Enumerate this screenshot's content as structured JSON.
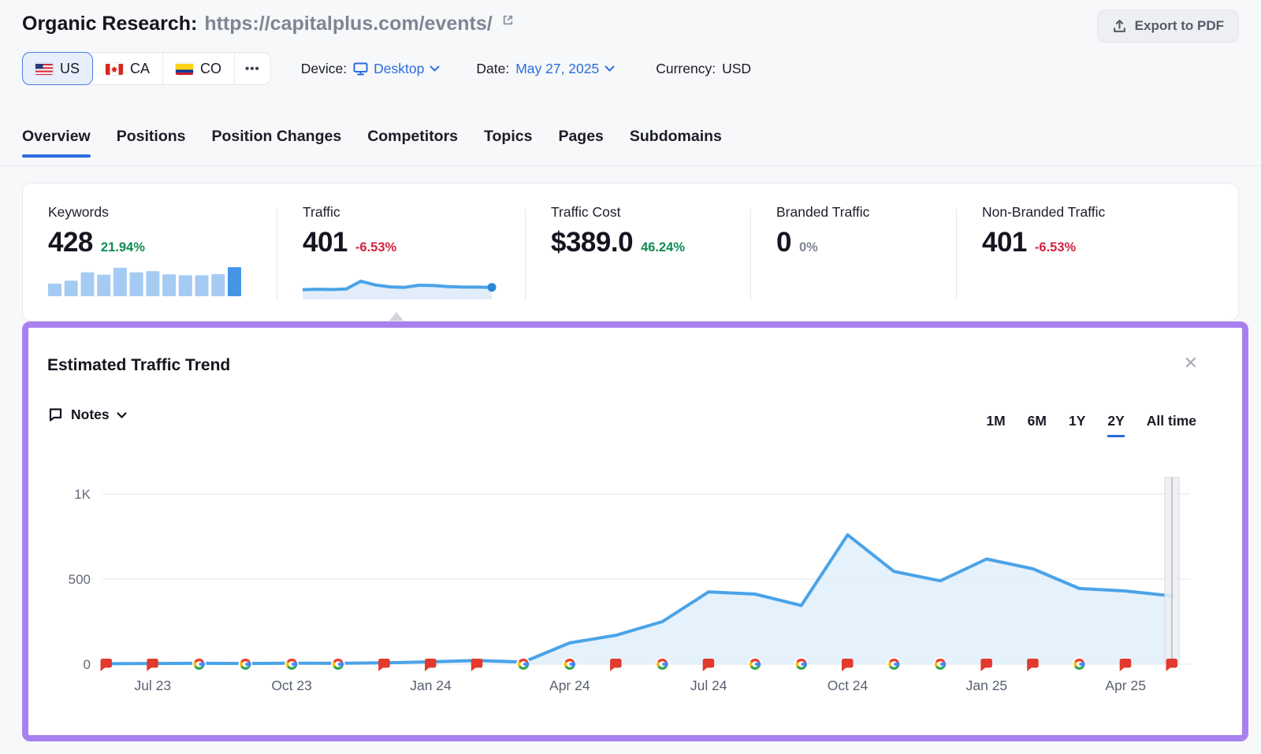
{
  "header": {
    "title": "Organic Research:",
    "url": "https://capitalplus.com/events/",
    "export_label": "Export to PDF"
  },
  "filters": {
    "countries": [
      {
        "code": "US",
        "selected": true
      },
      {
        "code": "CA",
        "selected": false
      },
      {
        "code": "CO",
        "selected": false
      }
    ],
    "more_label": "•••",
    "device_label": "Device:",
    "device_value": "Desktop",
    "date_label": "Date:",
    "date_value": "May 27, 2025",
    "currency_label": "Currency:",
    "currency_value": "USD"
  },
  "tabs": [
    {
      "label": "Overview",
      "active": true
    },
    {
      "label": "Positions",
      "active": false
    },
    {
      "label": "Position Changes",
      "active": false
    },
    {
      "label": "Competitors",
      "active": false
    },
    {
      "label": "Topics",
      "active": false
    },
    {
      "label": "Pages",
      "active": false
    },
    {
      "label": "Subdomains",
      "active": false
    }
  ],
  "metrics": [
    {
      "label": "Keywords",
      "value": "428",
      "delta": "21.94%",
      "trend": "up",
      "spark_bars": [
        42,
        52,
        80,
        72,
        95,
        80,
        84,
        73,
        70,
        70,
        74,
        97
      ]
    },
    {
      "label": "Traffic",
      "value": "401",
      "delta": "-6.53%",
      "trend": "down",
      "spark_line": [
        30,
        32,
        31,
        33,
        62,
        48,
        41,
        39,
        47,
        46,
        42,
        40,
        40,
        39
      ]
    },
    {
      "label": "Traffic Cost",
      "value": "$389.0",
      "delta": "46.24%",
      "trend": "up"
    },
    {
      "label": "Branded Traffic",
      "value": "0",
      "delta": "0%",
      "trend": "flat"
    },
    {
      "label": "Non-Branded Traffic",
      "value": "401",
      "delta": "-6.53%",
      "trend": "down"
    }
  ],
  "trend": {
    "title": "Estimated Traffic Trend",
    "close_icon": "✕",
    "notes_label": "Notes",
    "ranges": [
      "1M",
      "6M",
      "1Y",
      "2Y",
      "All time"
    ],
    "active_range": "2Y"
  },
  "chart_data": {
    "type": "area",
    "title": "Estimated Traffic Trend",
    "x": [
      "Jun 23",
      "Jul 23",
      "Aug 23",
      "Sep 23",
      "Oct 23",
      "Nov 23",
      "Dec 23",
      "Jan 24",
      "Feb 24",
      "Mar 24",
      "Apr 24",
      "May 24",
      "Jun 24",
      "Jul 24",
      "Aug 24",
      "Sep 24",
      "Oct 24",
      "Nov 24",
      "Dec 24",
      "Jan 25",
      "Feb 25",
      "Mar 25",
      "Apr 25",
      "May 25"
    ],
    "values": [
      3,
      4,
      5,
      4,
      6,
      5,
      8,
      14,
      22,
      12,
      125,
      170,
      250,
      425,
      412,
      345,
      760,
      545,
      490,
      618,
      560,
      445,
      430,
      401
    ],
    "note_markers": [
      "flag",
      "flag",
      "google",
      "google",
      "google",
      "google",
      "flag",
      "flag",
      "flag",
      "google",
      "google",
      "flag",
      "google",
      "flag",
      "google",
      "google",
      "flag",
      "google",
      "google",
      "flag",
      "flag",
      "google",
      "flag",
      "flag"
    ],
    "xtick_labels": [
      "Jul 23",
      "Oct 23",
      "Jan 24",
      "Apr 24",
      "Jul 24",
      "Oct 24",
      "Jan 25",
      "Apr 25"
    ],
    "yticks": [
      {
        "value": 0,
        "label": "0"
      },
      {
        "value": 500,
        "label": "500"
      },
      {
        "value": 1000,
        "label": "1K"
      }
    ],
    "ylim": [
      0,
      1000
    ],
    "grid": true,
    "legend": false,
    "current_period_band_on_last_point": true
  },
  "colors": {
    "accent_blue": "#2b6cde",
    "positive_green": "#0e8a52",
    "negative_red": "#d2233f",
    "highlight_purple": "#a881f0",
    "chart_line": "#4aa3e8",
    "chart_fill": "#e1eefa",
    "bar_light": "#a5cbf3",
    "bar_accent": "#4495e6",
    "flag_red": "#e23a2d",
    "google_blue": "#4285F4",
    "google_red": "#EA4335",
    "google_yellow": "#FBBC05",
    "google_green": "#34A853",
    "grid_line": "#e5e6ea",
    "axis_text": "#636a78"
  },
  "icons": {
    "export": "tray-arrow-up",
    "external_link": "open-in-new",
    "monitor": "desktop-monitor",
    "chevron": "chevron-down",
    "notes": "speech-bubble",
    "note_marker": "red-flag-note",
    "google_marker": "google-g-update"
  }
}
